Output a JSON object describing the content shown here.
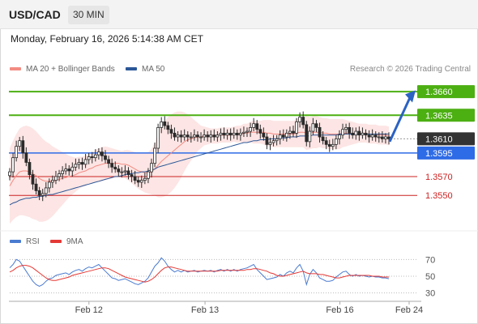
{
  "header": {
    "symbol": "USD/CAD",
    "timeframe": "30 MIN"
  },
  "datetime": "Monday, February 16, 2026 5:14:38 AM CET",
  "legend": {
    "items": [
      {
        "label": "MA 20 + Bollinger Bands",
        "color": "#f28b82"
      },
      {
        "label": "MA 50",
        "color": "#2b5797"
      }
    ],
    "credit": "Research © 2026 Trading Central"
  },
  "rsi_legend": {
    "items": [
      {
        "label": "RSI",
        "color": "#4a7bd0"
      },
      {
        "label": "9MA",
        "color": "#e53935"
      }
    ]
  },
  "chart_data": [
    {
      "type": "candlestick",
      "yrange": [
        1.3515,
        1.3673
      ],
      "levels": [
        {
          "label": "1.3660",
          "value": 1.366,
          "kind": "resistance",
          "color": "#4caf12"
        },
        {
          "label": "1.3635",
          "value": 1.3635,
          "kind": "resistance",
          "color": "#4caf12"
        },
        {
          "label": "1.3610",
          "value": 1.361,
          "kind": "last",
          "color": "#333333"
        },
        {
          "label": "1.3595",
          "value": 1.3595,
          "kind": "pivot",
          "color": "#2e6be6"
        },
        {
          "label": "1.3570",
          "value": 1.357,
          "kind": "support",
          "color": "#cc2222"
        },
        {
          "label": "1.3550",
          "value": 1.355,
          "kind": "support",
          "color": "#cc2222"
        }
      ],
      "close": [
        1.3575,
        1.359,
        1.3602,
        1.3608,
        1.3595,
        1.3585,
        1.3572,
        1.3562,
        1.3555,
        1.355,
        1.3552,
        1.3558,
        1.3564,
        1.3566,
        1.357,
        1.3573,
        1.3576,
        1.3578,
        1.3576,
        1.358,
        1.3583,
        1.3585,
        1.3583,
        1.3588,
        1.3591,
        1.359,
        1.3593,
        1.3596,
        1.3592,
        1.3588,
        1.3584,
        1.358,
        1.3578,
        1.3575,
        1.3575,
        1.3576,
        1.3572,
        1.357,
        1.3566,
        1.3564,
        1.3566,
        1.3568,
        1.3575,
        1.3584,
        1.36,
        1.3622,
        1.3628,
        1.3624,
        1.362,
        1.3616,
        1.3612,
        1.3614,
        1.3612,
        1.3614,
        1.3612,
        1.3612,
        1.3614,
        1.3612,
        1.3612,
        1.3614,
        1.3612,
        1.3614,
        1.3612,
        1.3614,
        1.3616,
        1.3614,
        1.3616,
        1.3614,
        1.3616,
        1.3614,
        1.3616,
        1.3617,
        1.3618,
        1.3622,
        1.3626,
        1.362,
        1.3616,
        1.3612,
        1.3604,
        1.3606,
        1.3608,
        1.361,
        1.3614,
        1.3612,
        1.3616,
        1.3618,
        1.3616,
        1.3628,
        1.3633,
        1.3625,
        1.3607,
        1.3618,
        1.3626,
        1.3622,
        1.3612,
        1.3608,
        1.3604,
        1.3602,
        1.3604,
        1.361,
        1.3614,
        1.362,
        1.3622,
        1.3616,
        1.3614,
        1.3618,
        1.3614,
        1.3616,
        1.3614,
        1.3612,
        1.3614,
        1.3612,
        1.3612,
        1.361,
        1.3612,
        1.361
      ],
      "ma20": [
        1.356,
        1.3566,
        1.3571,
        1.3575,
        1.3576,
        1.3576,
        1.3575,
        1.3573,
        1.3571,
        1.3568,
        1.3566,
        1.3565,
        1.3565,
        1.3565,
        1.3566,
        1.3567,
        1.3568,
        1.3569,
        1.357,
        1.3571,
        1.3572,
        1.3574,
        1.3575,
        1.3576,
        1.3578,
        1.3579,
        1.3581,
        1.3582,
        1.3583,
        1.3584,
        1.3584,
        1.3584,
        1.3584,
        1.3584,
        1.3583,
        1.3583,
        1.3582,
        1.358,
        1.3578,
        1.3576,
        1.3575,
        1.3574,
        1.3574,
        1.3575,
        1.3578,
        1.3582,
        1.3586,
        1.3589,
        1.3592,
        1.3595,
        1.3598,
        1.3601,
        1.3604,
        1.3607,
        1.3609,
        1.361,
        1.3611,
        1.3612,
        1.3612,
        1.3613,
        1.3613,
        1.3613,
        1.3613,
        1.3613,
        1.3614,
        1.3614,
        1.3614,
        1.3614,
        1.3615,
        1.3615,
        1.3615,
        1.3616,
        1.3616,
        1.3617,
        1.3617,
        1.3617,
        1.3617,
        1.3617,
        1.3616,
        1.3616,
        1.3615,
        1.3615,
        1.3615,
        1.3615,
        1.3615,
        1.3615,
        1.3615,
        1.3616,
        1.3617,
        1.3617,
        1.3616,
        1.3616,
        1.3617,
        1.3617,
        1.3617,
        1.3616,
        1.3616,
        1.3615,
        1.3615,
        1.3615,
        1.3615,
        1.3616,
        1.3616,
        1.3616,
        1.3616,
        1.3616,
        1.3616,
        1.3616,
        1.3616,
        1.3615,
        1.3615,
        1.3615,
        1.3614,
        1.3614,
        1.3614,
        1.3613
      ],
      "ma50": [
        1.354,
        1.3542,
        1.3543,
        1.3545,
        1.3546,
        1.3547,
        1.3547,
        1.3548,
        1.3548,
        1.3549,
        1.3549,
        1.355,
        1.3551,
        1.3551,
        1.3552,
        1.3553,
        1.3554,
        1.3555,
        1.3556,
        1.3557,
        1.3558,
        1.3559,
        1.356,
        1.3561,
        1.3562,
        1.3563,
        1.3564,
        1.3565,
        1.3566,
        1.3567,
        1.3568,
        1.3569,
        1.357,
        1.357,
        1.3571,
        1.3572,
        1.3573,
        1.3573,
        1.3574,
        1.3574,
        1.3575,
        1.3575,
        1.3576,
        1.3577,
        1.3578,
        1.358,
        1.3581,
        1.3582,
        1.3583,
        1.3584,
        1.3585,
        1.3586,
        1.3587,
        1.3588,
        1.3589,
        1.359,
        1.3591,
        1.3592,
        1.3593,
        1.3594,
        1.3595,
        1.3596,
        1.3597,
        1.3598,
        1.3599,
        1.36,
        1.3601,
        1.3602,
        1.3603,
        1.3604,
        1.3605,
        1.3606,
        1.3606,
        1.3607,
        1.3608,
        1.3608,
        1.3609,
        1.3609,
        1.3609,
        1.361,
        1.361,
        1.361,
        1.3611,
        1.3611,
        1.3611,
        1.3612,
        1.3612,
        1.3612,
        1.3613,
        1.3613,
        1.3613,
        1.3613,
        1.3614,
        1.3614,
        1.3614,
        1.3614,
        1.3614,
        1.3614,
        1.3614,
        1.3614,
        1.3615,
        1.3615,
        1.3615,
        1.3615,
        1.3615,
        1.3615,
        1.3615,
        1.3615,
        1.3615,
        1.3615,
        1.3615,
        1.3615,
        1.3615,
        1.3615,
        1.3615,
        1.3615
      ],
      "bb_width": [
        0.004,
        0.0042,
        0.0044,
        0.0046,
        0.0047,
        0.0048,
        0.0048,
        0.0048,
        0.0047,
        0.0046,
        0.0044,
        0.0042,
        0.004,
        0.0037,
        0.0034,
        0.0031,
        0.0028,
        0.0025,
        0.0022,
        0.002,
        0.0018,
        0.0017,
        0.0016,
        0.0016,
        0.0016,
        0.0016,
        0.0017,
        0.0018,
        0.0018,
        0.0018,
        0.0017,
        0.0016,
        0.0015,
        0.0014,
        0.0014,
        0.0015,
        0.0016,
        0.0017,
        0.0018,
        0.0019,
        0.002,
        0.0021,
        0.0022,
        0.0024,
        0.0028,
        0.0034,
        0.0038,
        0.004,
        0.0041,
        0.0041,
        0.004,
        0.0038,
        0.0035,
        0.0031,
        0.0027,
        0.0023,
        0.0019,
        0.0015,
        0.0012,
        0.001,
        0.0009,
        0.0008,
        0.0008,
        0.0008,
        0.0008,
        0.0008,
        0.0008,
        0.0008,
        0.0008,
        0.0009,
        0.0009,
        0.001,
        0.001,
        0.0011,
        0.0012,
        0.0012,
        0.0012,
        0.0013,
        0.0014,
        0.0014,
        0.0014,
        0.0014,
        0.0014,
        0.0014,
        0.0014,
        0.0014,
        0.0014,
        0.0015,
        0.0016,
        0.0016,
        0.0018,
        0.0017,
        0.0017,
        0.0017,
        0.0016,
        0.0016,
        0.0016,
        0.0016,
        0.0016,
        0.0016,
        0.0016,
        0.0015,
        0.0014,
        0.0013,
        0.0012,
        0.0011,
        0.001,
        0.001,
        0.001,
        0.001,
        0.001,
        0.001,
        0.001,
        0.001,
        0.001,
        0.001
      ],
      "projection": {
        "from": 1.3607,
        "to": 1.3658
      }
    },
    {
      "type": "line",
      "name": "RSI",
      "yrange": [
        20,
        80
      ],
      "ticks": [
        {
          "label": "70",
          "value": 70
        },
        {
          "label": "50",
          "value": 50
        },
        {
          "label": "30",
          "value": 30
        }
      ],
      "rsi": [
        60,
        64,
        70,
        68,
        62,
        56,
        50,
        44,
        40,
        38,
        40,
        44,
        47,
        48,
        51,
        52,
        53,
        54,
        52,
        55,
        57,
        58,
        56,
        59,
        61,
        60,
        62,
        64,
        60,
        56,
        52,
        48,
        47,
        45,
        46,
        47,
        45,
        43,
        41,
        40,
        42,
        44,
        48,
        55,
        62,
        66,
        72,
        68,
        62,
        58,
        55,
        57,
        55,
        57,
        55,
        56,
        57,
        55,
        56,
        57,
        56,
        57,
        55,
        57,
        58,
        56,
        58,
        56,
        58,
        56,
        58,
        59,
        60,
        62,
        64,
        58,
        54,
        50,
        46,
        47,
        48,
        49,
        52,
        50,
        54,
        56,
        54,
        60,
        64,
        56,
        40,
        52,
        58,
        54,
        48,
        46,
        44,
        44,
        45,
        49,
        52,
        55,
        56,
        52,
        50,
        52,
        50,
        51,
        50,
        49,
        50,
        49,
        49,
        48,
        48,
        47
      ],
      "ma9": [
        55,
        57,
        60,
        62,
        63,
        63,
        62,
        60,
        57,
        54,
        51,
        48,
        46,
        45,
        45,
        46,
        47,
        48,
        49,
        51,
        52,
        53,
        54,
        55,
        56,
        57,
        58,
        59,
        60,
        60,
        59,
        57,
        55,
        53,
        51,
        49,
        48,
        47,
        46,
        45,
        44,
        43,
        44,
        46,
        49,
        53,
        57,
        60,
        61,
        61,
        60,
        59,
        58,
        57,
        56,
        56,
        56,
        56,
        56,
        56,
        56,
        56,
        56,
        56,
        57,
        57,
        57,
        57,
        57,
        57,
        57,
        57,
        58,
        58,
        59,
        59,
        58,
        57,
        56,
        54,
        53,
        51,
        50,
        50,
        51,
        52,
        53,
        54,
        55,
        56,
        54,
        53,
        53,
        53,
        52,
        52,
        51,
        50,
        49,
        48,
        48,
        49,
        50,
        51,
        51,
        51,
        51,
        51,
        51,
        51,
        50,
        50,
        50,
        49,
        49,
        49
      ],
      "x_labels": [
        {
          "label": "Feb 12",
          "pos": 0.2
        },
        {
          "label": "Feb 13",
          "pos": 0.49
        },
        {
          "label": "Feb 16",
          "pos": 0.827
        },
        {
          "label": "Feb 24",
          "pos": 1.0
        }
      ]
    }
  ]
}
